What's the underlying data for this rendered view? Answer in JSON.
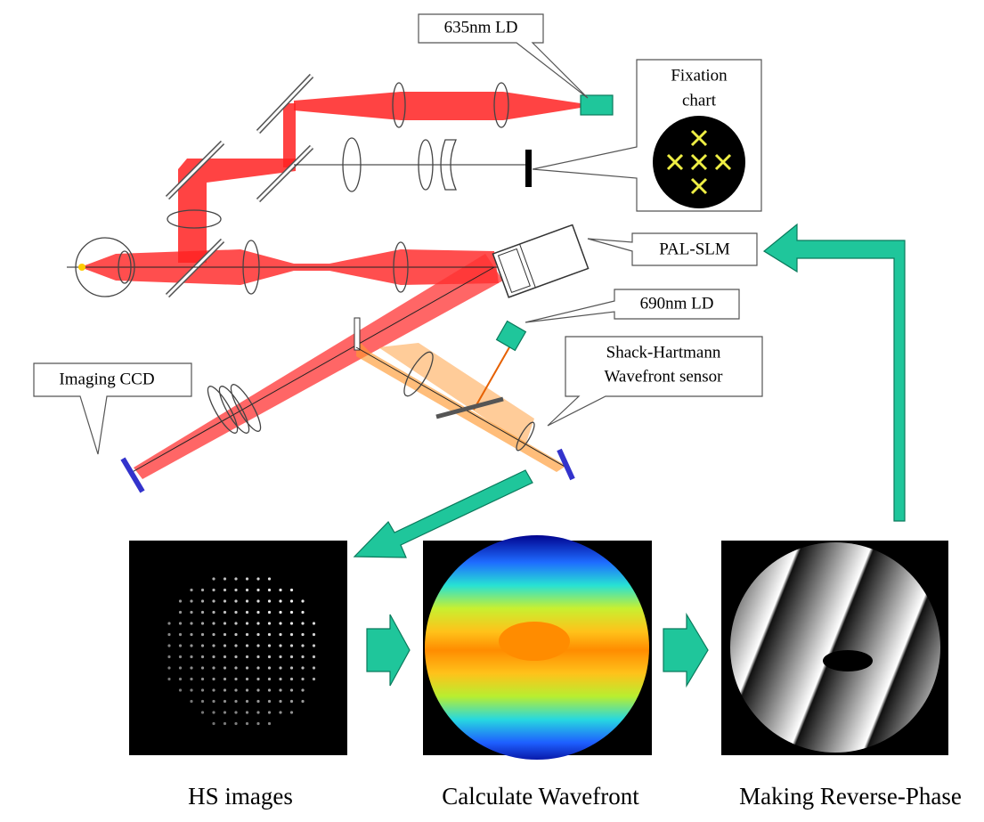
{
  "labels": {
    "ld635": "635nm LD",
    "fixation_chart": [
      "Fixation",
      "chart"
    ],
    "pal_slm": "PAL-SLM",
    "ld690": "690nm LD",
    "shack_hartmann": [
      "Shack-Hartmann",
      "Wavefront sensor"
    ],
    "imaging_ccd": "Imaging  CCD"
  },
  "panels": [
    "HS images",
    "Calculate Wavefront",
    "Making Reverse-Phase"
  ]
}
